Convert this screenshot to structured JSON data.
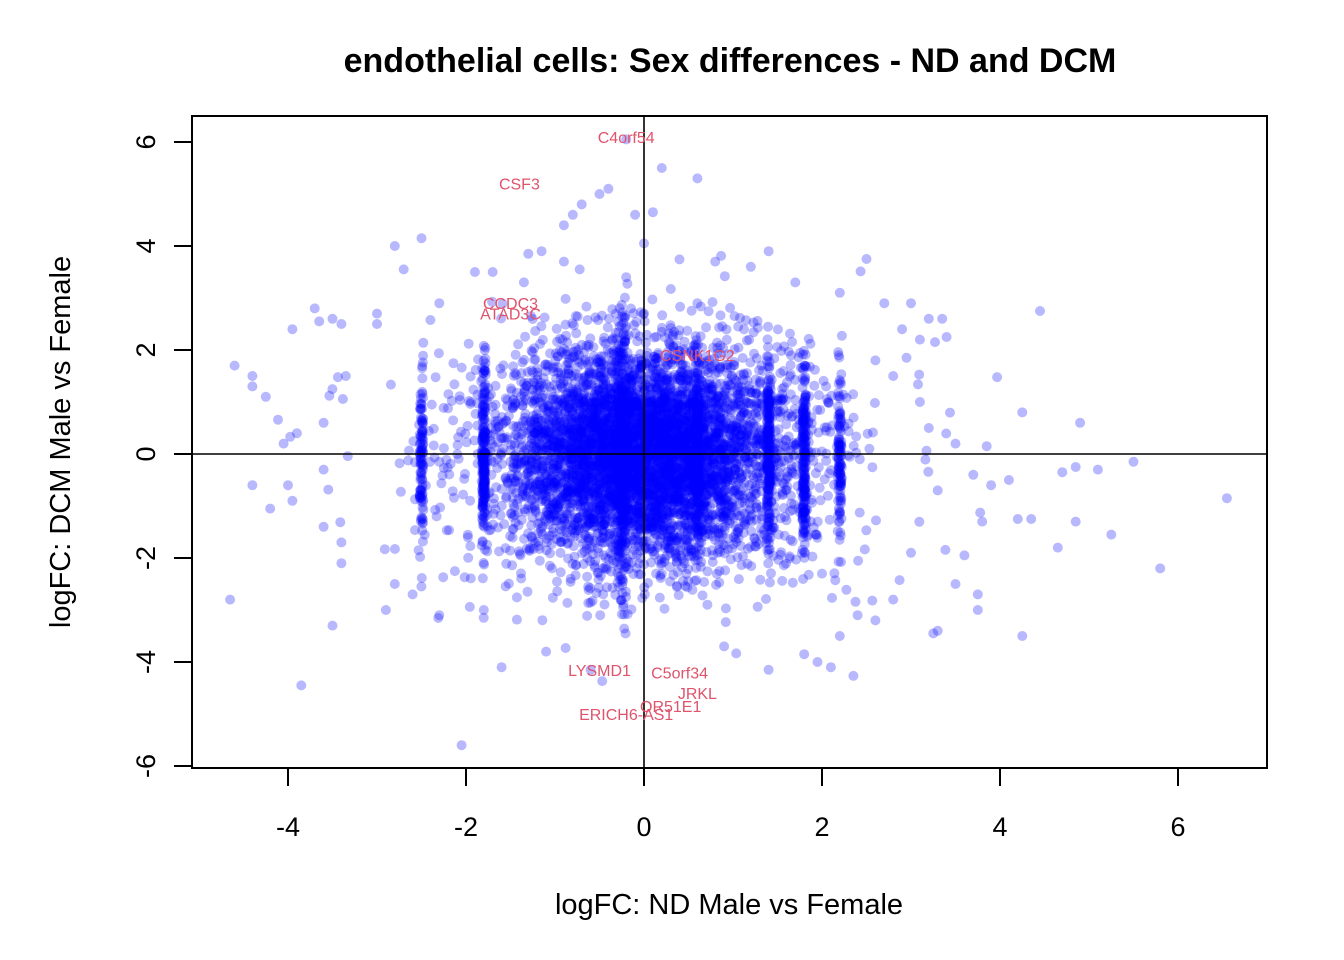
{
  "chart_data": {
    "type": "scatter",
    "title": "endothelial cells: Sex differences - ND and DCM",
    "xlabel": "logFC: ND Male vs Female",
    "ylabel": "logFC: DCM Male vs Female",
    "xlim": [
      -5.0,
      7.0
    ],
    "ylim": [
      -6.0,
      6.3
    ],
    "xticks": [
      -4,
      -2,
      0,
      2,
      4,
      6
    ],
    "yticks": [
      -6,
      -4,
      -2,
      0,
      2,
      4,
      6
    ],
    "reference_lines": {
      "x": 0,
      "y": 0
    },
    "point_color": "#0000ff",
    "label_color": "#df536b",
    "labeled_points": [
      {
        "label": "C4orf54",
        "x": -0.2,
        "y": 6.1
      },
      {
        "label": "CSF3",
        "x": -1.4,
        "y": 5.2
      },
      {
        "label": "CCDC3",
        "x": -1.5,
        "y": 2.9
      },
      {
        "label": "ATAD3C",
        "x": -1.5,
        "y": 2.7
      },
      {
        "label": "CSNK1G2",
        "x": 0.6,
        "y": 1.9
      },
      {
        "label": "LYSMD1",
        "x": -0.5,
        "y": -4.15
      },
      {
        "label": "C5orf34",
        "x": 0.4,
        "y": -4.2
      },
      {
        "label": "JRKL",
        "x": 0.6,
        "y": -4.6
      },
      {
        "label": "OR51E1",
        "x": 0.3,
        "y": -4.85
      },
      {
        "label": "ERICH6-AS1",
        "x": -0.2,
        "y": -5.0
      }
    ],
    "outliers": [
      [
        6.55,
        -0.85
      ],
      [
        5.8,
        -2.2
      ],
      [
        5.5,
        -0.15
      ],
      [
        5.25,
        -1.55
      ],
      [
        5.1,
        -0.3
      ],
      [
        4.9,
        0.6
      ],
      [
        4.85,
        -0.25
      ],
      [
        4.85,
        -1.3
      ],
      [
        4.7,
        -0.35
      ],
      [
        4.65,
        -1.8
      ],
      [
        4.45,
        2.75
      ],
      [
        4.35,
        -1.25
      ],
      [
        4.25,
        0.8
      ],
      [
        4.25,
        -3.5
      ],
      [
        4.2,
        -1.25
      ],
      [
        4.1,
        -0.5
      ],
      [
        3.9,
        -0.6
      ],
      [
        3.85,
        0.15
      ],
      [
        3.8,
        -1.3
      ],
      [
        3.75,
        -2.7
      ],
      [
        3.75,
        -3.0
      ],
      [
        3.6,
        -1.95
      ],
      [
        3.4,
        2.25
      ],
      [
        3.35,
        2.6
      ],
      [
        3.3,
        -3.4
      ],
      [
        3.2,
        2.6
      ],
      [
        3.0,
        2.9
      ],
      [
        2.95,
        1.85
      ],
      [
        2.7,
        2.9
      ],
      [
        2.2,
        3.1
      ],
      [
        2.5,
        3.75
      ],
      [
        1.4,
        3.9
      ],
      [
        0.2,
        5.5
      ],
      [
        0.6,
        5.3
      ],
      [
        -0.1,
        4.6
      ],
      [
        0.1,
        4.65
      ],
      [
        -0.2,
        6.05
      ],
      [
        -0.5,
        5.0
      ],
      [
        -0.7,
        4.8
      ],
      [
        -0.8,
        4.6
      ],
      [
        -0.9,
        4.4
      ],
      [
        -1.3,
        3.85
      ],
      [
        -1.15,
        3.9
      ],
      [
        -1.35,
        3.3
      ],
      [
        -2.5,
        4.15
      ],
      [
        -2.8,
        4.0
      ],
      [
        -2.7,
        3.55
      ],
      [
        -3.0,
        2.7
      ],
      [
        -3.4,
        2.5
      ],
      [
        -3.5,
        2.6
      ],
      [
        -3.7,
        2.8
      ],
      [
        -3.65,
        2.55
      ],
      [
        -3.95,
        2.4
      ],
      [
        -4.6,
        1.7
      ],
      [
        -4.4,
        1.5
      ],
      [
        -4.4,
        1.3
      ],
      [
        -4.25,
        1.1
      ],
      [
        -4.05,
        0.2
      ],
      [
        -3.9,
        0.4
      ],
      [
        -4.0,
        -0.6
      ],
      [
        -3.95,
        -0.9
      ],
      [
        -4.4,
        -0.6
      ],
      [
        -4.2,
        -1.05
      ],
      [
        -3.6,
        -1.4
      ],
      [
        -3.5,
        -3.3
      ],
      [
        -4.65,
        -2.8
      ],
      [
        -3.85,
        -4.45
      ],
      [
        -2.05,
        -5.6
      ],
      [
        -1.6,
        -4.1
      ],
      [
        -1.1,
        -3.8
      ],
      [
        -0.6,
        -4.15
      ],
      [
        0.9,
        -3.7
      ],
      [
        1.4,
        -4.15
      ],
      [
        1.8,
        -3.85
      ],
      [
        1.95,
        -4.0
      ],
      [
        2.1,
        -4.1
      ],
      [
        2.4,
        -3.1
      ],
      [
        2.2,
        -3.5
      ],
      [
        3.25,
        -3.45
      ],
      [
        2.0,
        -2.3
      ],
      [
        1.7,
        3.3
      ],
      [
        0.6,
        2.9
      ],
      [
        -0.4,
        5.1
      ],
      [
        0.0,
        4.05
      ],
      [
        -1.9,
        3.5
      ],
      [
        -1.7,
        3.5
      ],
      [
        -2.3,
        2.9
      ],
      [
        -3.0,
        2.5
      ],
      [
        -3.35,
        1.5
      ],
      [
        -3.6,
        0.6
      ],
      [
        -3.6,
        -0.3
      ],
      [
        -3.4,
        -1.7
      ],
      [
        -3.4,
        -2.1
      ],
      [
        -2.8,
        -2.5
      ],
      [
        -2.9,
        -3.0
      ],
      [
        -2.6,
        -2.7
      ],
      [
        -2.3,
        -3.1
      ],
      [
        -1.8,
        -3.0
      ],
      [
        2.6,
        1.8
      ],
      [
        2.8,
        1.5
      ],
      [
        3.1,
        1.0
      ],
      [
        3.2,
        0.5
      ],
      [
        3.5,
        0.2
      ],
      [
        3.3,
        -0.7
      ],
      [
        3.7,
        -0.4
      ],
      [
        3.0,
        -1.9
      ],
      [
        3.5,
        -2.5
      ],
      [
        2.8,
        -2.8
      ],
      [
        2.6,
        -3.2
      ],
      [
        2.9,
        2.4
      ],
      [
        3.1,
        2.2
      ],
      [
        1.2,
        3.6
      ],
      [
        0.8,
        3.7
      ],
      [
        -0.2,
        3.4
      ],
      [
        -0.9,
        3.7
      ]
    ],
    "vertical_bands": [
      -2.5,
      -1.8,
      0.6,
      1.4,
      1.8,
      2.2
    ],
    "bulk_cloud": {
      "center": [
        0.0,
        0.0
      ],
      "sd_x": 0.75,
      "sd_y": 1.0,
      "n": 5200
    }
  }
}
